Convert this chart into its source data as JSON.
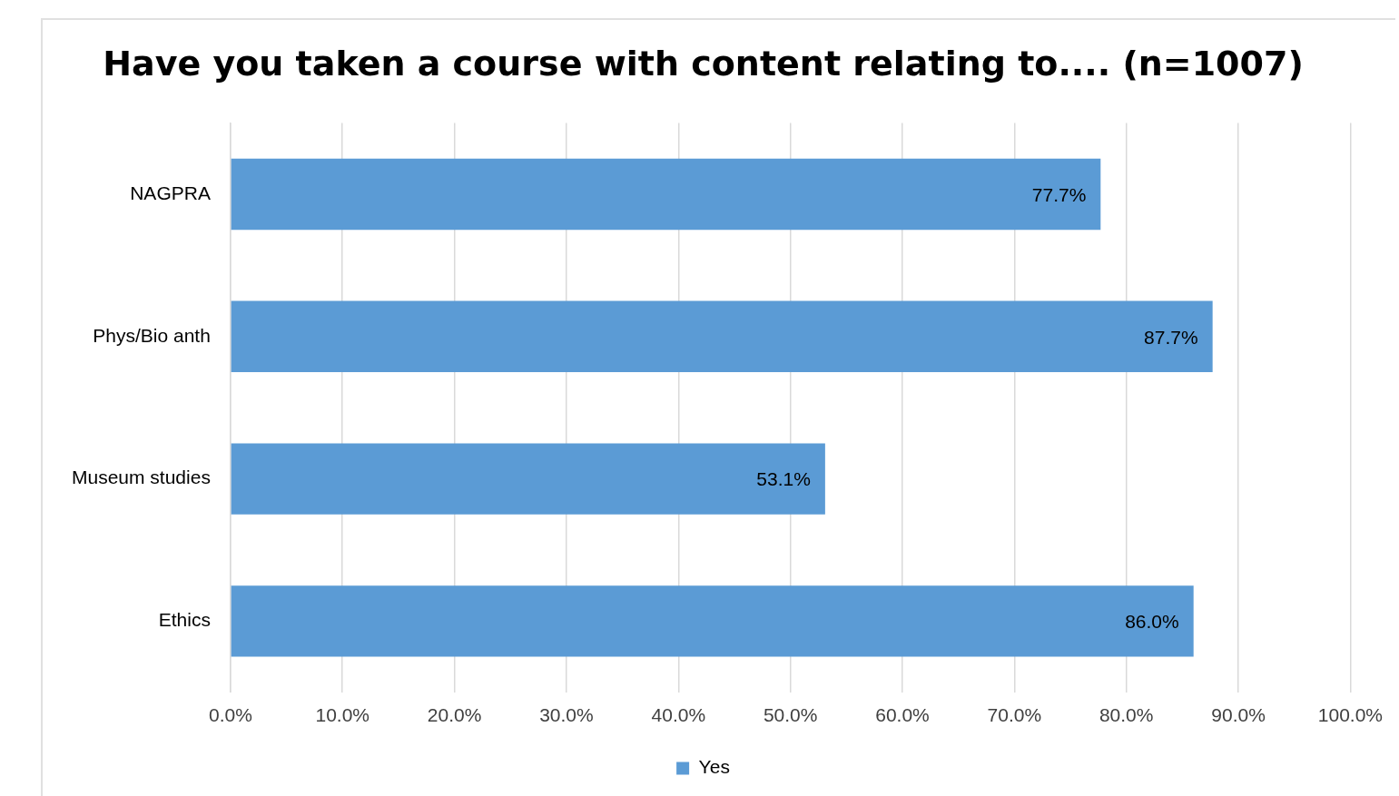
{
  "chart_data": {
    "type": "bar",
    "orientation": "horizontal",
    "title": "Have you taken a course with content relating to.... (n=1007)",
    "categories": [
      "NAGPRA",
      "Phys/Bio anth",
      "Museum studies",
      "Ethics"
    ],
    "series": [
      {
        "name": "Yes",
        "color": "#5b9bd5",
        "values": [
          77.7,
          87.7,
          53.1,
          86.0
        ],
        "value_labels": [
          "77.7%",
          "87.7%",
          "53.1%",
          "86.0%"
        ]
      }
    ],
    "xlim": [
      0,
      100
    ],
    "xticks": [
      {
        "value": 0,
        "label": "0.0%"
      },
      {
        "value": 10,
        "label": "10.0%"
      },
      {
        "value": 20,
        "label": "20.0%"
      },
      {
        "value": 30,
        "label": "30.0%"
      },
      {
        "value": 40,
        "label": "40.0%"
      },
      {
        "value": 50,
        "label": "50.0%"
      },
      {
        "value": 60,
        "label": "60.0%"
      },
      {
        "value": 70,
        "label": "70.0%"
      },
      {
        "value": 80,
        "label": "80.0%"
      },
      {
        "value": 90,
        "label": "90.0%"
      },
      {
        "value": 100,
        "label": "100.0%"
      }
    ],
    "grid": "x",
    "legend": "bottom"
  }
}
